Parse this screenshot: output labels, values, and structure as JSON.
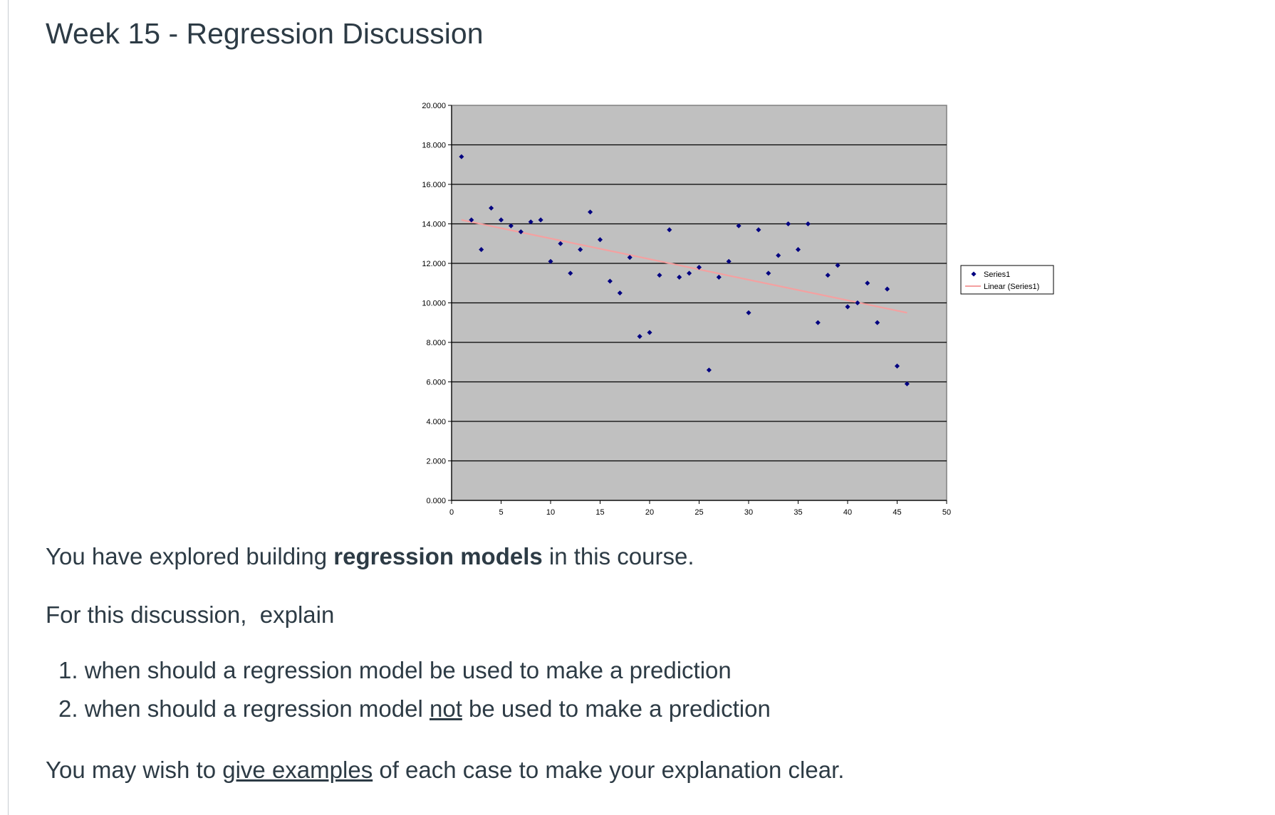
{
  "page": {
    "title": "Week 15 - Regression Discussion"
  },
  "content": {
    "intro_before": "You have explored building ",
    "intro_bold": "regression models",
    "intro_after": " in this course.",
    "prompt": "For this discussion,  explain",
    "questions": [
      {
        "number": "1.",
        "text_before": " when should a regression model be used to make a prediction",
        "underlined": "",
        "text_after": ""
      },
      {
        "number": "2.",
        "text_before": " when should a regression model ",
        "underlined": "not",
        "text_after": " be used to make a prediction"
      }
    ],
    "closing_before": "You may wish to ",
    "closing_link": "give examples",
    "closing_after": " of each case to make your explanation clear."
  },
  "chart_data": {
    "type": "scatter",
    "title": "",
    "xlabel": "",
    "ylabel": "",
    "xlim": [
      0,
      50
    ],
    "ylim": [
      0,
      20
    ],
    "x_ticks": [
      "0",
      "5",
      "10",
      "15",
      "20",
      "25",
      "30",
      "35",
      "40",
      "45",
      "50"
    ],
    "y_ticks": [
      "0.000",
      "2.000",
      "4.000",
      "6.000",
      "8.000",
      "10.000",
      "12.000",
      "14.000",
      "16.000",
      "18.000",
      "20.000"
    ],
    "grid": true,
    "plot_background": "#c0c0c0",
    "point_color": "#000080",
    "trend_color": "#f4a0a0",
    "legend_position": "right",
    "legend": [
      "Series1",
      "Linear (Series1)"
    ],
    "series": [
      {
        "name": "Series1",
        "x": [
          1,
          2,
          3,
          4,
          5,
          6,
          7,
          8,
          9,
          10,
          11,
          12,
          13,
          14,
          15,
          16,
          17,
          18,
          19,
          20,
          21,
          22,
          23,
          24,
          25,
          26,
          27,
          28,
          29,
          30,
          31,
          32,
          33,
          34,
          35,
          36,
          37,
          38,
          39,
          40,
          41,
          42,
          43,
          44,
          45,
          46
        ],
        "y": [
          17.4,
          14.2,
          12.7,
          14.8,
          14.2,
          13.9,
          13.6,
          14.1,
          14.2,
          12.1,
          13.0,
          11.5,
          12.7,
          14.6,
          13.2,
          11.1,
          10.5,
          12.3,
          8.3,
          8.5,
          11.4,
          13.7,
          11.3,
          11.5,
          11.8,
          6.6,
          11.3,
          12.1,
          13.9,
          9.5,
          13.7,
          11.5,
          12.4,
          14.0,
          12.7,
          14.0,
          9.0,
          11.4,
          11.9,
          9.8,
          10.0,
          11.0,
          9.0,
          10.7,
          6.8,
          5.9
        ]
      }
    ],
    "trendline": {
      "name": "Linear (Series1)",
      "x": [
        1,
        46
      ],
      "y": [
        14.2,
        9.5
      ]
    }
  }
}
